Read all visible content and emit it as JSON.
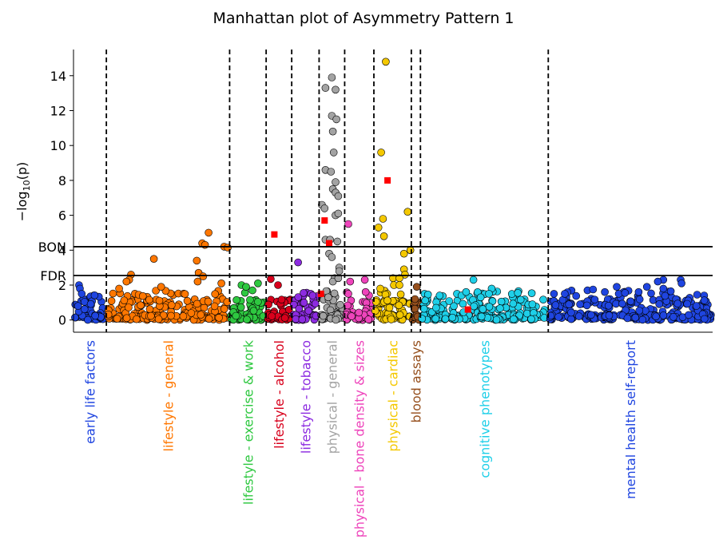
{
  "chart_data": {
    "type": "scatter",
    "title": "Manhattan plot of Asymmetry Pattern 1",
    "ylabel": "−log",
    "ylabel_sub": "10",
    "ylabel_suffix": "(p)",
    "xlim": [
      0,
      700
    ],
    "ylim": [
      -0.7,
      15.5
    ],
    "yticks": [
      0,
      2,
      4,
      6,
      8,
      10,
      12,
      14
    ],
    "thresholds": [
      {
        "label": "BON",
        "y": 4.2
      },
      {
        "label": "FDR",
        "y": 2.55
      }
    ],
    "boundaries": [
      36,
      171,
      211,
      239,
      269,
      297,
      329,
      370,
      380,
      520
    ],
    "highlight_color": "#ff0000",
    "categories": [
      {
        "name": "early life factors",
        "color": "#1f45e0",
        "start": 0,
        "end": 36
      },
      {
        "name": "lifestyle - general",
        "color": "#ff7700",
        "start": 36,
        "end": 171
      },
      {
        "name": "lifestyle - exercise & work",
        "color": "#2ec840",
        "start": 171,
        "end": 211
      },
      {
        "name": "lifestyle - alcohol",
        "color": "#d8001c",
        "start": 211,
        "end": 239
      },
      {
        "name": "lifestyle - tobacco",
        "color": "#8c2be0",
        "start": 239,
        "end": 269
      },
      {
        "name": "physical - general",
        "color": "#a3a3a3",
        "start": 269,
        "end": 297
      },
      {
        "name": "physical - bone density & sizes",
        "color": "#ee44bb",
        "start": 297,
        "end": 329
      },
      {
        "name": "physical - cardiac",
        "color": "#f4c800",
        "start": 329,
        "end": 370
      },
      {
        "name": "blood assays",
        "color": "#96501e",
        "start": 370,
        "end": 380
      },
      {
        "name": "cognitive phenotypes",
        "color": "#1ecfe8",
        "start": 380,
        "end": 520
      },
      {
        "name": "mental health self-report",
        "color": "#1f45e0",
        "start": 520,
        "end": 700
      }
    ],
    "peaks": [
      {
        "x": 6,
        "y": 2.0,
        "cat": 0
      },
      {
        "x": 7,
        "y": 1.8,
        "cat": 0
      },
      {
        "x": 9,
        "y": 1.5,
        "cat": 0
      },
      {
        "x": 5,
        "y": 0.8,
        "cat": 0
      },
      {
        "x": 148,
        "y": 5.0,
        "cat": 1
      },
      {
        "x": 141,
        "y": 4.4,
        "cat": 1
      },
      {
        "x": 144,
        "y": 4.3,
        "cat": 1
      },
      {
        "x": 165,
        "y": 4.2,
        "cat": 1
      },
      {
        "x": 169,
        "y": 4.15,
        "cat": 1
      },
      {
        "x": 63,
        "y": 2.6,
        "cat": 1
      },
      {
        "x": 61,
        "y": 2.3,
        "cat": 1
      },
      {
        "x": 58,
        "y": 2.2,
        "cat": 1
      },
      {
        "x": 137,
        "y": 2.7,
        "cat": 1
      },
      {
        "x": 142,
        "y": 2.5,
        "cat": 1
      },
      {
        "x": 135,
        "y": 3.4,
        "cat": 1
      },
      {
        "x": 88,
        "y": 3.5,
        "cat": 1
      },
      {
        "x": 136,
        "y": 2.2,
        "cat": 1
      },
      {
        "x": 162,
        "y": 2.1,
        "cat": 1
      },
      {
        "x": 50,
        "y": 1.8,
        "cat": 1
      },
      {
        "x": 96,
        "y": 1.9,
        "cat": 1
      },
      {
        "x": 184,
        "y": 2.0,
        "cat": 2
      },
      {
        "x": 189,
        "y": 1.9,
        "cat": 2
      },
      {
        "x": 202,
        "y": 2.1,
        "cat": 2
      },
      {
        "x": 196,
        "y": 1.7,
        "cat": 2
      },
      {
        "x": 224,
        "y": 2.0,
        "cat": 3
      },
      {
        "x": 216,
        "y": 2.35,
        "cat": 3
      },
      {
        "x": 246,
        "y": 3.3,
        "cat": 4
      },
      {
        "x": 252,
        "y": 1.55,
        "cat": 4
      },
      {
        "x": 260,
        "y": 1.5,
        "cat": 4
      },
      {
        "x": 262,
        "y": 1.4,
        "cat": 4
      },
      {
        "x": 283,
        "y": 13.9,
        "cat": 5
      },
      {
        "x": 276,
        "y": 13.3,
        "cat": 5
      },
      {
        "x": 287,
        "y": 13.2,
        "cat": 5
      },
      {
        "x": 283,
        "y": 11.7,
        "cat": 5
      },
      {
        "x": 288,
        "y": 11.5,
        "cat": 5
      },
      {
        "x": 284,
        "y": 10.8,
        "cat": 5
      },
      {
        "x": 285,
        "y": 9.6,
        "cat": 5
      },
      {
        "x": 276,
        "y": 8.6,
        "cat": 5
      },
      {
        "x": 282,
        "y": 8.5,
        "cat": 5
      },
      {
        "x": 287,
        "y": 7.9,
        "cat": 5
      },
      {
        "x": 284,
        "y": 7.5,
        "cat": 5
      },
      {
        "x": 287,
        "y": 7.3,
        "cat": 5
      },
      {
        "x": 290,
        "y": 7.1,
        "cat": 5
      },
      {
        "x": 272,
        "y": 6.6,
        "cat": 5
      },
      {
        "x": 275,
        "y": 6.4,
        "cat": 5
      },
      {
        "x": 287,
        "y": 6.0,
        "cat": 5
      },
      {
        "x": 290,
        "y": 6.1,
        "cat": 5
      },
      {
        "x": 276,
        "y": 4.6,
        "cat": 5
      },
      {
        "x": 281,
        "y": 4.6,
        "cat": 5
      },
      {
        "x": 289,
        "y": 4.5,
        "cat": 5
      },
      {
        "x": 280,
        "y": 3.8,
        "cat": 5
      },
      {
        "x": 283,
        "y": 3.6,
        "cat": 5
      },
      {
        "x": 291,
        "y": 3.0,
        "cat": 5
      },
      {
        "x": 291,
        "y": 2.8,
        "cat": 5
      },
      {
        "x": 286,
        "y": 2.4,
        "cat": 5
      },
      {
        "x": 284,
        "y": 2.2,
        "cat": 5
      },
      {
        "x": 290,
        "y": 2.4,
        "cat": 5
      },
      {
        "x": 279,
        "y": 1.3,
        "cat": 5
      },
      {
        "x": 301,
        "y": 5.5,
        "cat": 6
      },
      {
        "x": 303,
        "y": 2.2,
        "cat": 6
      },
      {
        "x": 319,
        "y": 2.3,
        "cat": 6
      },
      {
        "x": 301,
        "y": 1.5,
        "cat": 6
      },
      {
        "x": 320,
        "y": 1.6,
        "cat": 6
      },
      {
        "x": 342,
        "y": 14.8,
        "cat": 7
      },
      {
        "x": 337,
        "y": 9.6,
        "cat": 7
      },
      {
        "x": 366,
        "y": 6.2,
        "cat": 7
      },
      {
        "x": 339,
        "y": 5.8,
        "cat": 7
      },
      {
        "x": 334,
        "y": 5.3,
        "cat": 7
      },
      {
        "x": 340,
        "y": 4.8,
        "cat": 7
      },
      {
        "x": 369,
        "y": 4.0,
        "cat": 7
      },
      {
        "x": 362,
        "y": 3.8,
        "cat": 7
      },
      {
        "x": 362,
        "y": 2.9,
        "cat": 7
      },
      {
        "x": 363,
        "y": 2.6,
        "cat": 7
      },
      {
        "x": 350,
        "y": 2.4,
        "cat": 7
      },
      {
        "x": 357,
        "y": 2.4,
        "cat": 7
      },
      {
        "x": 351,
        "y": 2.0,
        "cat": 7
      },
      {
        "x": 357,
        "y": 2.0,
        "cat": 7
      },
      {
        "x": 336,
        "y": 1.8,
        "cat": 7
      },
      {
        "x": 376,
        "y": 1.9,
        "cat": 8
      },
      {
        "x": 374,
        "y": 1.2,
        "cat": 8
      },
      {
        "x": 438,
        "y": 2.3,
        "cat": 9
      },
      {
        "x": 458,
        "y": 1.8,
        "cat": 9
      },
      {
        "x": 401,
        "y": 1.4,
        "cat": 9
      },
      {
        "x": 420,
        "y": 1.5,
        "cat": 9
      },
      {
        "x": 425,
        "y": 1.4,
        "cat": 9
      },
      {
        "x": 430,
        "y": 1.6,
        "cat": 9
      },
      {
        "x": 455,
        "y": 1.5,
        "cat": 9
      },
      {
        "x": 446,
        "y": 1.3,
        "cat": 9
      },
      {
        "x": 665,
        "y": 2.3,
        "cat": 10
      },
      {
        "x": 646,
        "y": 2.3,
        "cat": 10
      },
      {
        "x": 640,
        "y": 2.2,
        "cat": 10
      },
      {
        "x": 666,
        "y": 2.1,
        "cat": 10
      },
      {
        "x": 595,
        "y": 1.9,
        "cat": 10
      },
      {
        "x": 628,
        "y": 1.9,
        "cat": 10
      },
      {
        "x": 646,
        "y": 1.8,
        "cat": 10
      },
      {
        "x": 563,
        "y": 1.7,
        "cat": 10
      },
      {
        "x": 569,
        "y": 1.75,
        "cat": 10
      },
      {
        "x": 604,
        "y": 1.55,
        "cat": 10
      },
      {
        "x": 582,
        "y": 1.6,
        "cat": 10
      },
      {
        "x": 619,
        "y": 1.6,
        "cat": 10
      },
      {
        "x": 538,
        "y": 1.5,
        "cat": 10
      },
      {
        "x": 683,
        "y": 1.45,
        "cat": 10
      }
    ],
    "highlighted": [
      {
        "x": 220,
        "y": 4.9
      },
      {
        "x": 275,
        "y": 5.7
      },
      {
        "x": 280,
        "y": 4.4
      },
      {
        "x": 271,
        "y": 1.5
      },
      {
        "x": 344,
        "y": 8.0
      },
      {
        "x": 432,
        "y": 0.6
      }
    ]
  }
}
